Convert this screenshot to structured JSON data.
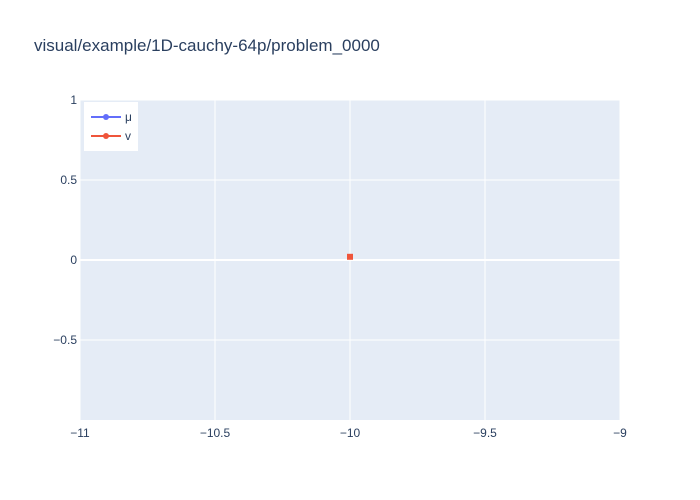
{
  "chart_data": {
    "type": "scatter",
    "title": "visual/example/1D-cauchy-64p/problem_0000",
    "xlabel": "",
    "ylabel": "",
    "xlim": [
      -11,
      -9
    ],
    "ylim": [
      -1,
      1
    ],
    "x_ticks": [
      {
        "value": -11,
        "label": "−11"
      },
      {
        "value": -10.5,
        "label": "−10.5"
      },
      {
        "value": -10,
        "label": "−10"
      },
      {
        "value": -9.5,
        "label": "−9.5"
      },
      {
        "value": -9,
        "label": "−9"
      }
    ],
    "y_ticks": [
      {
        "value": 1,
        "label": "1"
      },
      {
        "value": 0.5,
        "label": "0.5"
      },
      {
        "value": 0,
        "label": "0"
      },
      {
        "value": -0.5,
        "label": "−0.5"
      }
    ],
    "grid": true,
    "legend_position": "top-left",
    "series": [
      {
        "name": "μ",
        "color": "#636efa",
        "marker": "circle",
        "x": [],
        "y": []
      },
      {
        "name": "v",
        "color": "#ef553b",
        "marker": "square",
        "x": [
          -10
        ],
        "y": [
          0.02
        ]
      }
    ],
    "colors": {
      "plot_background": "#e5ecf6",
      "grid": "#ffffff",
      "text": "#2a3f5f"
    }
  }
}
